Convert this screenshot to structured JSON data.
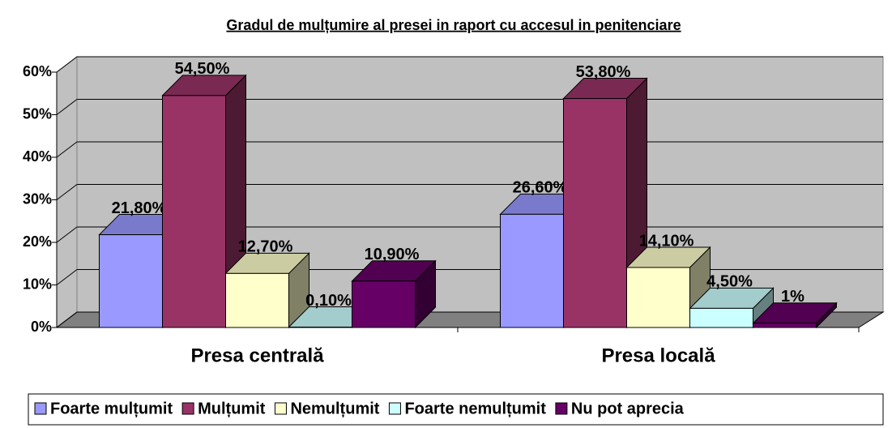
{
  "chart_data": {
    "type": "bar3d",
    "title": "Gradul de mulțumire al presei in raport cu accesul in penitenciare",
    "categories": [
      "Presa centrală",
      "Presa locală"
    ],
    "series": [
      {
        "name": "Foarte mulțumit",
        "color": "#9999ff",
        "values": [
          21.8,
          26.6
        ],
        "value_labels": [
          "21,80%",
          "26,60%"
        ]
      },
      {
        "name": "Mulțumit",
        "color": "#993366",
        "values": [
          54.5,
          53.8
        ],
        "value_labels": [
          "54,50%",
          "53,80%"
        ]
      },
      {
        "name": "Nemulțumit",
        "color": "#ffffcc",
        "values": [
          12.7,
          14.1
        ],
        "value_labels": [
          "12,70%",
          "14,10%"
        ]
      },
      {
        "name": "Foarte nemulțumit",
        "color": "#ccffff",
        "values": [
          0.1,
          4.5
        ],
        "value_labels": [
          "0,10%",
          "4,50%"
        ]
      },
      {
        "name": "Nu pot aprecia",
        "color": "#660066",
        "values": [
          10.9,
          1
        ],
        "value_labels": [
          "10,90%",
          "1%"
        ]
      }
    ],
    "ylim": [
      0,
      60
    ],
    "yticks": [
      {
        "value": 0,
        "label": "0%"
      },
      {
        "value": 10,
        "label": "10%"
      },
      {
        "value": 20,
        "label": "20%"
      },
      {
        "value": 30,
        "label": "30%"
      },
      {
        "value": 40,
        "label": "40%"
      },
      {
        "value": 50,
        "label": "50%"
      },
      {
        "value": 60,
        "label": "60%"
      }
    ],
    "grid": true,
    "legend": "bottom"
  }
}
